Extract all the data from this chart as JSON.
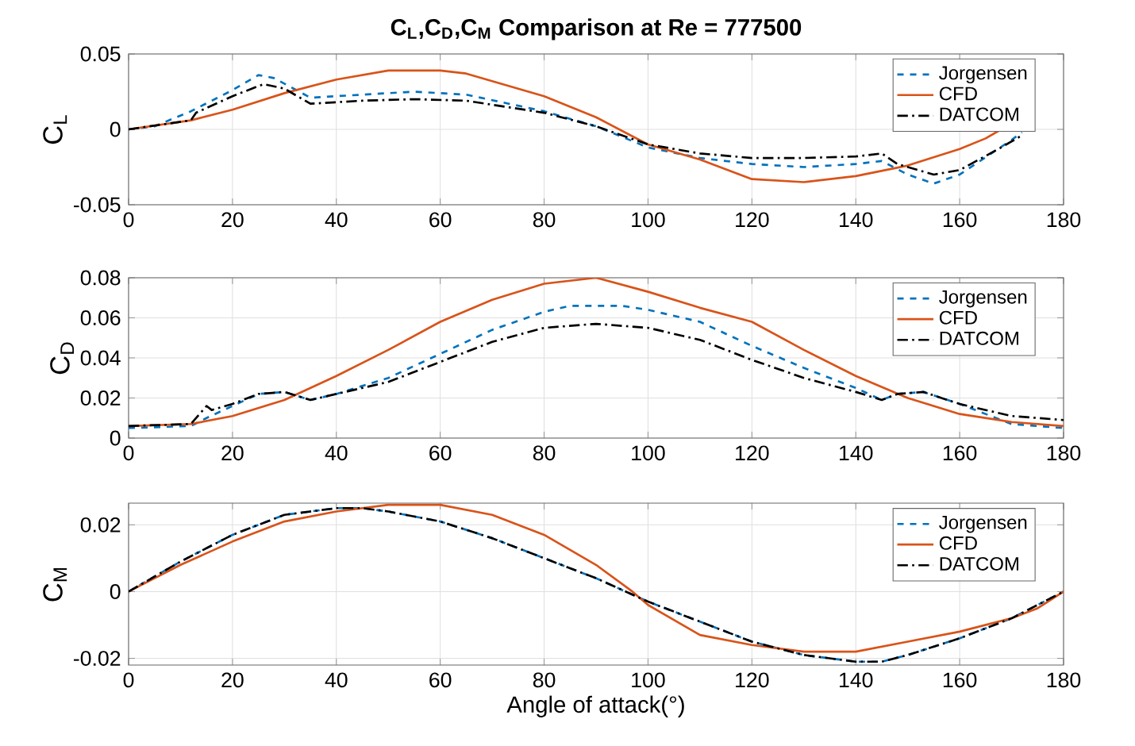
{
  "chart_data": [
    {
      "type": "line",
      "title": "C$_{L}$,C$_{D}$,C$_{M}$ Comparison at Re = 777500",
      "ylabel": "C$_{L}$",
      "xlim": [
        0,
        180
      ],
      "xticks": [
        0,
        20,
        40,
        60,
        80,
        100,
        120,
        140,
        160,
        180
      ],
      "ylim": [
        -0.05,
        0.05
      ],
      "yticks": [
        -0.05,
        0,
        0.05
      ],
      "grid": true,
      "legend": "top right",
      "series": [
        {
          "name": "Jorgensen",
          "color": "#0072bd",
          "line_style": "dashed",
          "x": [
            0,
            5,
            12,
            20,
            25,
            28,
            35,
            45,
            55,
            65,
            80,
            90,
            100,
            110,
            120,
            130,
            140,
            145,
            150,
            155,
            160,
            170,
            172
          ],
          "values": [
            0,
            0.002,
            0.012,
            0.026,
            0.036,
            0.034,
            0.021,
            0.023,
            0.025,
            0.023,
            0.012,
            0.002,
            -0.012,
            -0.019,
            -0.023,
            -0.025,
            -0.023,
            -0.021,
            -0.03,
            -0.036,
            -0.03,
            -0.007,
            -0.002
          ]
        },
        {
          "name": "CFD",
          "color": "#d95319",
          "line_style": "solid",
          "x": [
            0,
            12,
            20,
            30,
            40,
            50,
            60,
            65,
            80,
            90,
            100,
            110,
            120,
            130,
            140,
            150,
            160,
            165,
            168
          ],
          "values": [
            0,
            0.006,
            0.013,
            0.024,
            0.033,
            0.039,
            0.039,
            0.037,
            0.022,
            0.008,
            -0.01,
            -0.02,
            -0.033,
            -0.035,
            -0.031,
            -0.024,
            -0.013,
            -0.006,
            0
          ]
        },
        {
          "name": "DATCOM",
          "color": "#000000",
          "line_style": "dashdot",
          "x": [
            0,
            12,
            13,
            20,
            26,
            30,
            35,
            45,
            55,
            65,
            80,
            90,
            100,
            110,
            120,
            130,
            140,
            145,
            148,
            155,
            160,
            168,
            172
          ],
          "values": [
            0,
            0.006,
            0.011,
            0.022,
            0.03,
            0.027,
            0.017,
            0.019,
            0.02,
            0.019,
            0.011,
            0.002,
            -0.01,
            -0.016,
            -0.019,
            -0.019,
            -0.018,
            -0.016,
            -0.023,
            -0.03,
            -0.027,
            -0.012,
            -0.004
          ]
        }
      ]
    },
    {
      "type": "line",
      "ylabel": "C$_{D}$",
      "xlim": [
        0,
        180
      ],
      "xticks": [
        0,
        20,
        40,
        60,
        80,
        100,
        120,
        140,
        160,
        180
      ],
      "ylim": [
        0,
        0.08
      ],
      "yticks": [
        0,
        0.02,
        0.04,
        0.06,
        0.08
      ],
      "grid": true,
      "legend": "top right",
      "series": [
        {
          "name": "Jorgensen",
          "color": "#0072bd",
          "line_style": "dashed",
          "x": [
            0,
            12,
            15,
            20,
            25,
            30,
            35,
            40,
            50,
            60,
            70,
            80,
            85,
            95,
            100,
            110,
            120,
            130,
            140,
            145,
            148,
            153,
            160,
            170,
            180
          ],
          "values": [
            0.005,
            0.006,
            0.01,
            0.016,
            0.022,
            0.023,
            0.019,
            0.022,
            0.03,
            0.042,
            0.054,
            0.063,
            0.066,
            0.066,
            0.064,
            0.058,
            0.046,
            0.035,
            0.025,
            0.019,
            0.022,
            0.023,
            0.017,
            0.007,
            0.005
          ]
        },
        {
          "name": "CFD",
          "color": "#d95319",
          "line_style": "solid",
          "x": [
            0,
            12,
            20,
            30,
            40,
            50,
            60,
            70,
            80,
            90,
            100,
            110,
            120,
            130,
            140,
            150,
            160,
            170,
            180
          ],
          "values": [
            0.006,
            0.007,
            0.011,
            0.019,
            0.031,
            0.044,
            0.058,
            0.069,
            0.077,
            0.08,
            0.073,
            0.065,
            0.058,
            0.044,
            0.031,
            0.02,
            0.012,
            0.008,
            0.006
          ]
        },
        {
          "name": "DATCOM",
          "color": "#000000",
          "line_style": "dashdot",
          "x": [
            0,
            12,
            15,
            16,
            20,
            25,
            30,
            35,
            40,
            50,
            60,
            70,
            80,
            90,
            100,
            110,
            120,
            130,
            140,
            145,
            148,
            153,
            160,
            170,
            180
          ],
          "values": [
            0.006,
            0.007,
            0.016,
            0.014,
            0.017,
            0.022,
            0.023,
            0.019,
            0.022,
            0.028,
            0.038,
            0.048,
            0.055,
            0.057,
            0.055,
            0.049,
            0.039,
            0.03,
            0.023,
            0.019,
            0.022,
            0.023,
            0.017,
            0.011,
            0.009
          ]
        }
      ]
    },
    {
      "type": "line",
      "xlabel": "Angle of attack(°)",
      "ylabel": "C$_{M}$",
      "xlim": [
        0,
        180
      ],
      "xticks": [
        0,
        20,
        40,
        60,
        80,
        100,
        120,
        140,
        160,
        180
      ],
      "ylim": [
        -0.022,
        0.0265
      ],
      "yticks": [
        -0.02,
        0,
        0.02
      ],
      "grid": true,
      "legend": "top right",
      "series": [
        {
          "name": "Jorgensen",
          "color": "#0072bd",
          "line_style": "dashed",
          "x": [
            0,
            10,
            20,
            30,
            40,
            45,
            50,
            60,
            70,
            80,
            90,
            100,
            110,
            120,
            130,
            140,
            145,
            150,
            160,
            170,
            180
          ],
          "values": [
            0,
            0.009,
            0.017,
            0.023,
            0.025,
            0.025,
            0.024,
            0.021,
            0.016,
            0.01,
            0.004,
            -0.003,
            -0.009,
            -0.015,
            -0.019,
            -0.021,
            -0.021,
            -0.019,
            -0.014,
            -0.008,
            0
          ]
        },
        {
          "name": "CFD",
          "color": "#d95319",
          "line_style": "solid",
          "x": [
            0,
            10,
            20,
            30,
            40,
            50,
            60,
            70,
            80,
            90,
            97,
            100,
            110,
            120,
            130,
            140,
            150,
            160,
            170,
            175,
            180
          ],
          "values": [
            0,
            0.008,
            0.015,
            0.021,
            0.024,
            0.026,
            0.026,
            0.023,
            0.017,
            0.008,
            0,
            -0.004,
            -0.013,
            -0.016,
            -0.018,
            -0.018,
            -0.015,
            -0.012,
            -0.008,
            -0.005,
            0
          ]
        },
        {
          "name": "DATCOM",
          "color": "#000000",
          "line_style": "dashdot",
          "x": [
            0,
            10,
            20,
            30,
            40,
            45,
            50,
            60,
            70,
            80,
            90,
            100,
            110,
            120,
            130,
            140,
            145,
            150,
            160,
            170,
            180
          ],
          "values": [
            0,
            0.009,
            0.017,
            0.023,
            0.025,
            0.025,
            0.024,
            0.021,
            0.016,
            0.01,
            0.004,
            -0.003,
            -0.009,
            -0.015,
            -0.019,
            -0.021,
            -0.021,
            -0.019,
            -0.014,
            -0.008,
            0
          ]
        }
      ]
    }
  ]
}
